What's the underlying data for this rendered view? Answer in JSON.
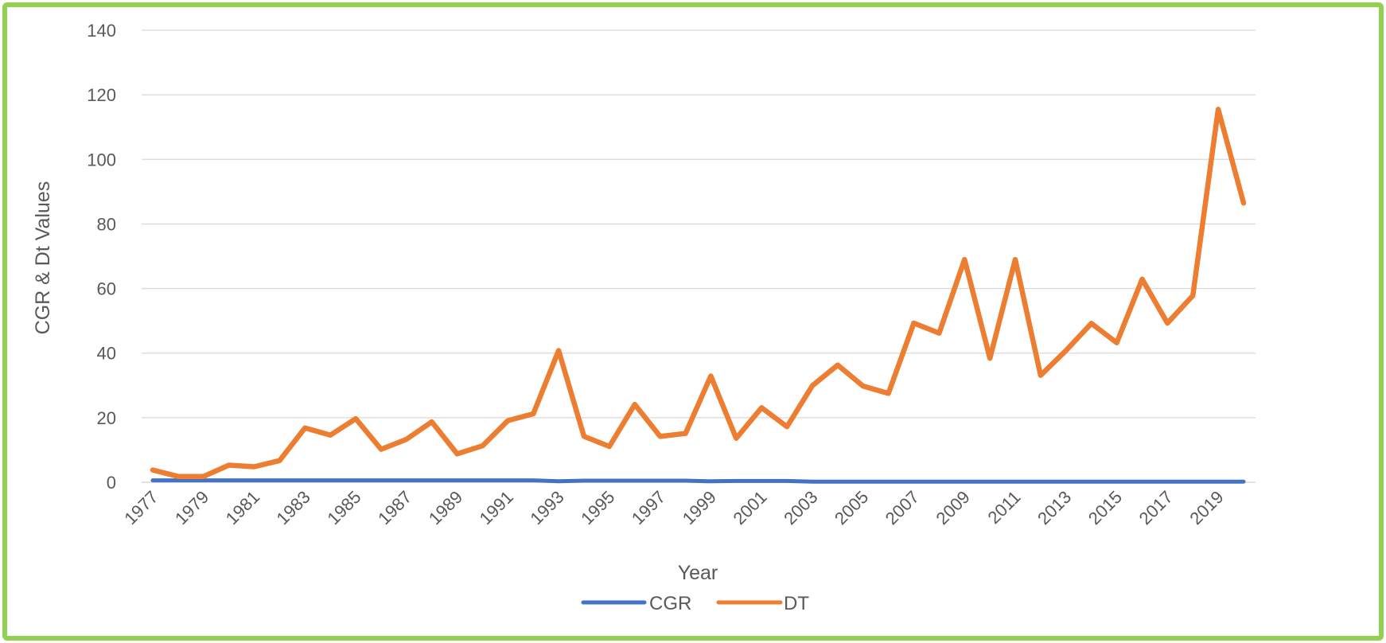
{
  "chart_data": {
    "type": "line",
    "title": "",
    "xlabel": "Year",
    "ylabel": "CGR & Dt Values",
    "ylim": [
      0,
      140
    ],
    "yticks": [
      0,
      20,
      40,
      60,
      80,
      100,
      120,
      140
    ],
    "grid": true,
    "legend_position": "bottom",
    "x": [
      1977,
      1978,
      1979,
      1980,
      1981,
      1982,
      1983,
      1984,
      1985,
      1986,
      1987,
      1988,
      1989,
      1990,
      1991,
      1992,
      1993,
      1994,
      1995,
      1996,
      1997,
      1998,
      1999,
      2000,
      2001,
      2002,
      2003,
      2004,
      2005,
      2006,
      2007,
      2008,
      2009,
      2010,
      2011,
      2012,
      2013,
      2014,
      2015,
      2016,
      2017,
      2018,
      2019,
      2020
    ],
    "xtick_labels": [
      "1977",
      "1979",
      "1981",
      "1983",
      "1985",
      "1987",
      "1989",
      "1991",
      "1993",
      "1995",
      "1997",
      "1999",
      "2001",
      "2003",
      "2005",
      "2007",
      "2009",
      "2011",
      "2013",
      "2015",
      "2017",
      "2019"
    ],
    "series": [
      {
        "name": "CGR",
        "color": "#4472c4",
        "values": [
          0.6,
          0.6,
          0.6,
          0.6,
          0.6,
          0.6,
          0.6,
          0.6,
          0.6,
          0.6,
          0.6,
          0.6,
          0.6,
          0.6,
          0.6,
          0.6,
          0.3,
          0.5,
          0.5,
          0.5,
          0.5,
          0.5,
          0.3,
          0.4,
          0.4,
          0.4,
          0.2,
          0.2,
          0.2,
          0.2,
          0.2,
          0.2,
          0.2,
          0.2,
          0.2,
          0.2,
          0.2,
          0.2,
          0.2,
          0.2,
          0.2,
          0.2,
          0.2,
          0.2
        ]
      },
      {
        "name": "DT",
        "color": "#ed7d31",
        "values": [
          3.8,
          1.8,
          1.8,
          5.3,
          4.8,
          6.7,
          16.8,
          14.6,
          19.7,
          10.2,
          13.3,
          18.7,
          8.8,
          11.3,
          19.1,
          21.2,
          40.8,
          14.2,
          11.1,
          24.1,
          14.2,
          15.1,
          32.9,
          13.6,
          23.1,
          17.2,
          29.9,
          36.3,
          29.8,
          27.5,
          49.3,
          46.2,
          69.0,
          38.4,
          69.0,
          33.1,
          40.8,
          49.2,
          43.2,
          62.9,
          49.3,
          57.8,
          115.5,
          86.5
        ]
      }
    ]
  }
}
